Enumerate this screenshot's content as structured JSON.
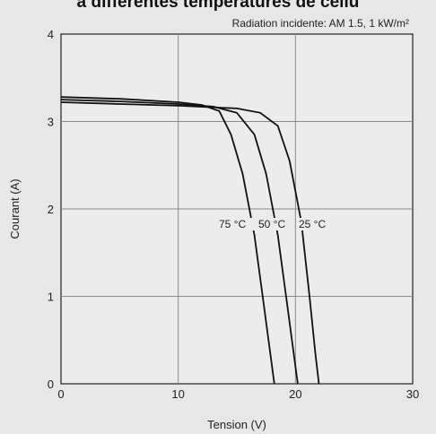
{
  "header": {
    "title_fragment": "à différentes températures de cellu"
  },
  "chart_data": {
    "type": "line",
    "title": "",
    "annotation": "Radiation incidente: AM 1.5, 1 kW/m²",
    "xlabel": "Tension (V)",
    "ylabel": "Courant (A)",
    "xlim": [
      0,
      30
    ],
    "ylim": [
      0,
      4
    ],
    "xticks": [
      "0",
      "10",
      "20",
      "30"
    ],
    "yticks": [
      "0",
      "1",
      "2",
      "3",
      "4"
    ],
    "grid": true,
    "series": [
      {
        "name": "75 °C",
        "x": [
          0,
          5,
          10,
          12,
          13.5,
          14.5,
          15.5,
          16.5,
          17.3,
          17.9,
          18.2
        ],
        "y": [
          3.28,
          3.26,
          3.22,
          3.19,
          3.12,
          2.85,
          2.4,
          1.7,
          0.9,
          0.3,
          0
        ]
      },
      {
        "name": "50 °C",
        "x": [
          0,
          5,
          10,
          13,
          15,
          16.5,
          17.5,
          18.5,
          19.3,
          19.9,
          20.2
        ],
        "y": [
          3.25,
          3.23,
          3.2,
          3.17,
          3.1,
          2.85,
          2.4,
          1.7,
          0.9,
          0.3,
          0
        ]
      },
      {
        "name": "25 °C",
        "x": [
          0,
          5,
          10,
          15,
          17,
          18.5,
          19.5,
          20.5,
          21.2,
          21.7,
          22
        ],
        "y": [
          3.22,
          3.2,
          3.18,
          3.15,
          3.1,
          2.95,
          2.55,
          1.85,
          1.0,
          0.35,
          0
        ]
      }
    ]
  }
}
